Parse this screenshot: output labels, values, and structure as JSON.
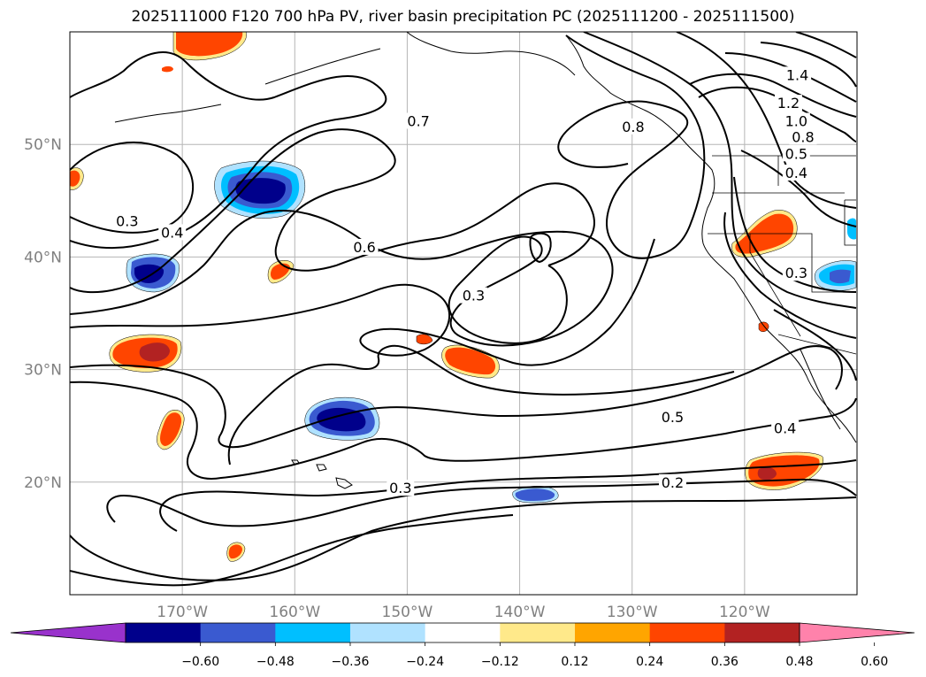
{
  "title": "2025111000 F120 700 hPa PV, river basin precipitation PC (2025111200 - 2025111500)",
  "map": {
    "lon_range": [
      -180,
      -110
    ],
    "lat_range": [
      10,
      60
    ],
    "lat_ticks": [
      {
        "value": 50,
        "label": "50°N"
      },
      {
        "value": 40,
        "label": "40°N"
      },
      {
        "value": 30,
        "label": "30°N"
      },
      {
        "value": 20,
        "label": "20°N"
      }
    ],
    "lon_ticks": [
      {
        "value": -170,
        "label": "170°W"
      },
      {
        "value": -160,
        "label": "160°W"
      },
      {
        "value": -150,
        "label": "150°W"
      },
      {
        "value": -140,
        "label": "140°W"
      },
      {
        "value": -130,
        "label": "130°W"
      },
      {
        "value": -120,
        "label": "120°W"
      }
    ],
    "contour_labels": [
      {
        "text": "0.7",
        "lon": -149,
        "lat": 52.1
      },
      {
        "text": "0.8",
        "lon": -129.9,
        "lat": 51.6
      },
      {
        "text": "1.4",
        "lon": -115.3,
        "lat": 56.2
      },
      {
        "text": "1.2",
        "lon": -116.1,
        "lat": 53.7
      },
      {
        "text": "1.0",
        "lon": -115.4,
        "lat": 52.1
      },
      {
        "text": "0.8",
        "lon": -114.8,
        "lat": 50.7
      },
      {
        "text": "0.5",
        "lon": -115.4,
        "lat": 49.2
      },
      {
        "text": "0.4",
        "lon": -115.4,
        "lat": 47.5
      },
      {
        "text": "0.3",
        "lon": -115.4,
        "lat": 38.6
      },
      {
        "text": "0.3",
        "lon": -174.9,
        "lat": 43.2
      },
      {
        "text": "0.4",
        "lon": -170.9,
        "lat": 42.2
      },
      {
        "text": "0.6",
        "lon": -153.8,
        "lat": 40.9
      },
      {
        "text": "0.3",
        "lon": -144.1,
        "lat": 36.6
      },
      {
        "text": "0.5",
        "lon": -126.4,
        "lat": 25.8
      },
      {
        "text": "0.4",
        "lon": -116.4,
        "lat": 24.8
      },
      {
        "text": "0.3",
        "lon": -150.6,
        "lat": 19.5
      },
      {
        "text": "0.2",
        "lon": -126.4,
        "lat": 20
      }
    ]
  },
  "colorbar": {
    "labels": [
      "−0.60",
      "−0.48",
      "−0.36",
      "−0.24",
      "−0.12",
      "0.12",
      "0.24",
      "0.36",
      "0.48",
      "0.60"
    ],
    "colors": [
      "#9932cc",
      "#00008b",
      "#3a5ad0",
      "#00bfff",
      "#b0e2ff",
      "#ffffff",
      "#ffe98a",
      "#ffa500",
      "#ff4500",
      "#b22222",
      "#ff82ab"
    ]
  }
}
